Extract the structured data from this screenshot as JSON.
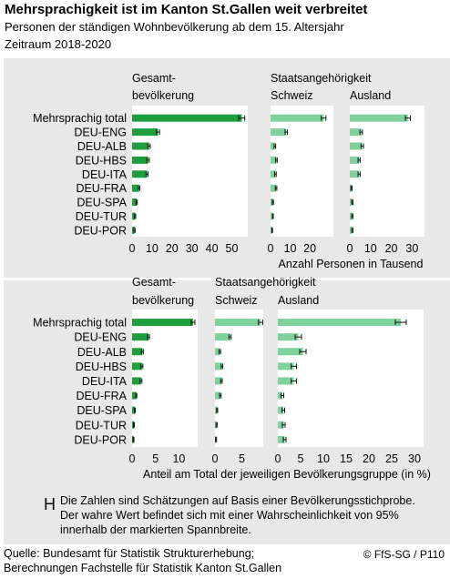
{
  "header": {
    "title": "Mehrsprachigkeit ist im Kanton St.Gallen weit verbreitet",
    "subtitle1": "Personen der ständigen Wohnbevölkerung ab dem 15. Altersjahr",
    "subtitle2": "Zeitraum 2018-2020"
  },
  "colors": {
    "dark_green": "#1e9e3c",
    "light_green": "#7fd29a",
    "panel": "#e8e8e8",
    "error": "#111111"
  },
  "chart_data": [
    {
      "type": "bar",
      "categories": [
        "Mehrsprachig total",
        "DEU-ENG",
        "DEU-ALB",
        "DEU-HBS",
        "DEU-ITA",
        "DEU-FRA",
        "DEU-SPA",
        "DEU-TUR",
        "DEU-POR"
      ],
      "xlabel": "Anzahl Personen in Tausend",
      "panels": [
        {
          "label1": "Gesamt-",
          "label2": "bevölkerung",
          "xlim": [
            0,
            58
          ],
          "ticks": [
            "0",
            "10",
            "20",
            "30",
            "40",
            "50"
          ],
          "color": "dark_green",
          "values": [
            55,
            13,
            8.5,
            8,
            7.5,
            3.5,
            2.3,
            1.5,
            1.2
          ],
          "err": [
            1.5,
            0.8,
            0.6,
            0.6,
            0.5,
            0.4,
            0.3,
            0.3,
            0.3
          ]
        },
        {
          "label1": "Staatsangehörigkeit",
          "label2": "Schweiz",
          "xlim": [
            0,
            32
          ],
          "ticks": [
            "0",
            "10",
            "20"
          ],
          "color": "light_green",
          "values": [
            27,
            8,
            2.2,
            3,
            2.5,
            2.8,
            1.2,
            1.2,
            0.8
          ],
          "err": [
            1.2,
            0.6,
            0.4,
            0.4,
            0.4,
            0.4,
            0.3,
            0.2,
            0.2
          ]
        },
        {
          "label1": "",
          "label2": "Ausland",
          "xlim": [
            0,
            36
          ],
          "ticks": [
            "0",
            "10",
            "20",
            "30"
          ],
          "color": "light_green",
          "values": [
            28,
            5.5,
            6,
            4.5,
            4.5,
            0.8,
            1.2,
            1.2,
            1.2
          ],
          "err": [
            1.2,
            0.6,
            0.6,
            0.5,
            0.5,
            0.3,
            0.3,
            0.3,
            0.3
          ]
        }
      ]
    },
    {
      "type": "bar",
      "categories": [
        "Mehrsprachig total",
        "DEU-ENG",
        "DEU-ALB",
        "DEU-HBS",
        "DEU-ITA",
        "DEU-FRA",
        "DEU-SPA",
        "DEU-TUR",
        "DEU-POR"
      ],
      "xlabel": "Anteil am Total der jeweiligen Bevölkerungsgruppe (in %)",
      "panels": [
        {
          "label1": "Gesamt-",
          "label2": "bevölkerung",
          "xlim": [
            0,
            14
          ],
          "ticks": [
            "0",
            "5",
            "10"
          ],
          "color": "dark_green",
          "values": [
            13,
            3.5,
            2.2,
            2.1,
            1.9,
            0.9,
            0.6,
            0.4,
            0.3
          ],
          "err": [
            0.4,
            0.2,
            0.2,
            0.2,
            0.2,
            0.1,
            0.1,
            0.1,
            0.1
          ]
        },
        {
          "label1": "Staatsangehörigkeit",
          "label2": "Schweiz",
          "xlim": [
            0,
            9
          ],
          "ticks": [
            "0",
            "5"
          ],
          "color": "light_green",
          "values": [
            8.5,
            2.8,
            0.9,
            1.3,
            1.2,
            1.0,
            0.4,
            0.3,
            0.2
          ],
          "err": [
            0.4,
            0.2,
            0.15,
            0.15,
            0.15,
            0.15,
            0.1,
            0.1,
            0.1
          ]
        },
        {
          "label1": "",
          "label2": "Ausland",
          "xlim": [
            0,
            32
          ],
          "ticks": [
            "0",
            "5",
            "10",
            "15",
            "20",
            "25",
            "30"
          ],
          "color": "light_green",
          "values": [
            27,
            4.5,
            5.5,
            3.5,
            3.5,
            1.0,
            1.2,
            1.3,
            1.5
          ],
          "err": [
            1.2,
            0.7,
            0.7,
            0.6,
            0.6,
            0.3,
            0.3,
            0.3,
            0.3
          ]
        }
      ]
    }
  ],
  "note": {
    "symbol": "H",
    "line1": "Die Zahlen sind Schätzungen auf Basis einer Bevölkerungsstichprobe.",
    "line2": "Der wahre Wert befindet sich mit einer Wahrscheinlichkeit von 95%",
    "line3": "innerhalb der markierten Spannbreite."
  },
  "footer": {
    "source1": "Quelle: Bundesamt für Statistik Strukturerhebung;",
    "source2": "Berechnungen Fachstelle für Statistik Kanton St.Gallen",
    "credit": "© FfS-SG / P110"
  }
}
